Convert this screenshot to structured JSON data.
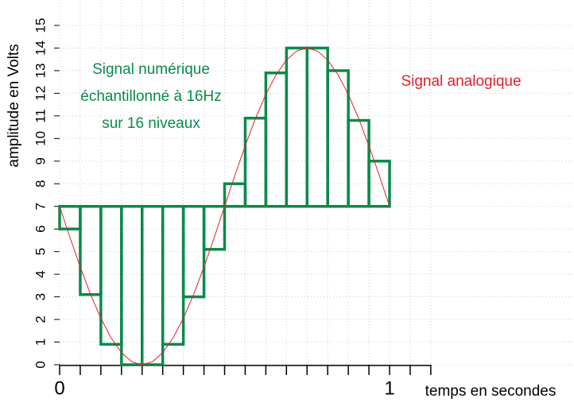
{
  "chart_data": {
    "type": "bar",
    "y_label": "amplitude en Volts",
    "x_label": "temps en secondes",
    "ylim": [
      0,
      15
    ],
    "yticks": [
      0,
      1,
      2,
      3,
      4,
      5,
      6,
      7,
      8,
      9,
      10,
      11,
      12,
      13,
      14,
      15
    ],
    "xlim": [
      0,
      1.125
    ],
    "xticks": [
      0,
      1
    ],
    "xminor_ticks": [
      0.0625,
      0.125,
      0.1875,
      0.25,
      0.3125,
      0.375,
      0.4375,
      0.5,
      0.5625,
      0.625,
      0.6875,
      0.75,
      0.8125,
      0.875,
      0.9375,
      1.0625,
      1.125
    ],
    "grid": true,
    "series": [
      {
        "type": "bar",
        "label": [
          "Signal numérique",
          "échantillonné à 16Hz",
          "sur 16 niveaux"
        ],
        "color": "#0a8a4a",
        "baseline": 7,
        "bins": [
          0,
          0.0625,
          0.125,
          0.1875,
          0.25,
          0.3125,
          0.375,
          0.4375,
          0.5,
          0.5625,
          0.625,
          0.6875,
          0.75,
          0.8125,
          0.875,
          0.9375,
          1
        ],
        "values": [
          6,
          3.1,
          0.9,
          0,
          0,
          0.9,
          3,
          5.1,
          8,
          10.9,
          12.9,
          14,
          14,
          13,
          10.8,
          9
        ]
      },
      {
        "type": "line",
        "label": "Signal analogique",
        "color": "#e0202a",
        "x": [
          0,
          0.03125,
          0.0625,
          0.09375,
          0.125,
          0.15625,
          0.1875,
          0.21875,
          0.25,
          0.28125,
          0.3125,
          0.34375,
          0.375,
          0.40625,
          0.4375,
          0.46875,
          0.5,
          0.53125,
          0.5625,
          0.59375,
          0.625,
          0.65625,
          0.6875,
          0.71875,
          0.75,
          0.78125,
          0.8125,
          0.84375,
          0.875,
          0.90625,
          0.9375,
          0.96875,
          1
        ],
        "values": [
          7,
          5.63,
          4.32,
          3.11,
          2.05,
          1.18,
          0.53,
          0.13,
          0,
          0.13,
          0.53,
          1.18,
          2.05,
          3.11,
          4.32,
          5.63,
          7,
          8.37,
          9.68,
          10.89,
          11.95,
          12.82,
          13.47,
          13.87,
          14,
          13.87,
          13.47,
          12.82,
          11.95,
          10.89,
          9.68,
          8.37,
          7
        ]
      }
    ]
  }
}
